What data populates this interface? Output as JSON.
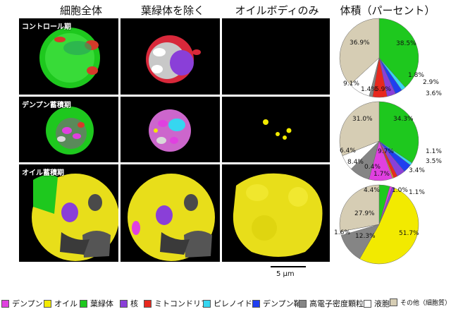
{
  "headers": {
    "col1": "細胞全体",
    "col2": "葉緑体を除く",
    "col3": "オイルボディのみ",
    "col4": "体積（パーセント）"
  },
  "rows": {
    "row1": "コントロール期",
    "row2": "デンプン蓄積期",
    "row3": "オイル蓄積期"
  },
  "scale": "5 µm",
  "legend": [
    {
      "label": "デンプン",
      "color": "#e040e0"
    },
    {
      "label": "オイル",
      "color": "#f2ea00"
    },
    {
      "label": "葉緑体",
      "color": "#1ec81e"
    },
    {
      "label": "核",
      "color": "#8a3fd8"
    },
    {
      "label": "ミトコンドリア",
      "color": "#e8281e"
    },
    {
      "label": "ピレノイド",
      "color": "#36d6f0"
    },
    {
      "label": "デンプン鞘",
      "color": "#1f3ff0"
    },
    {
      "label": "高電子密度顆粒",
      "color": "#858585"
    },
    {
      "label": "液胞",
      "color": "#ffffff"
    },
    {
      "label": "その他（細胞質）",
      "color": "#d6cdb4"
    }
  ],
  "chart_data": [
    {
      "type": "pie",
      "slices": [
        {
          "name": "葉緑体",
          "value": 38.5,
          "label": "38.5%"
        },
        {
          "name": "ピレノイド",
          "value": 1.8,
          "label": "1.8%"
        },
        {
          "name": "デンプン鞘",
          "value": 2.9,
          "label": "2.9%"
        },
        {
          "name": "核",
          "value": 3.6,
          "label": "3.6%"
        },
        {
          "name": "ミトコンドリア",
          "value": 5.9,
          "label": "5.9%"
        },
        {
          "name": "高電子密度顆粒",
          "value": 1.4,
          "label": "1.4%"
        },
        {
          "name": "液胞",
          "value": 9.1,
          "label": "9.1%"
        },
        {
          "name": "その他（細胞質）",
          "value": 36.9,
          "label": "36.9%"
        }
      ]
    },
    {
      "type": "pie",
      "slices": [
        {
          "name": "葉緑体",
          "value": 34.3,
          "label": "34.3%"
        },
        {
          "name": "ピレノイド",
          "value": 1.1,
          "label": "1.1%"
        },
        {
          "name": "デンプン鞘",
          "value": 3.5,
          "label": "3.5%"
        },
        {
          "name": "核",
          "value": 3.4,
          "label": "3.4%"
        },
        {
          "name": "ミトコンドリア",
          "value": 1.7,
          "label": "1.7%"
        },
        {
          "name": "オイル",
          "value": 0.4,
          "label": "0.4%"
        },
        {
          "name": "デンプン",
          "value": 9.7,
          "label": "9.7%"
        },
        {
          "name": "高電子密度顆粒",
          "value": 8.4,
          "label": "8.4%"
        },
        {
          "name": "液胞",
          "value": 6.4,
          "label": "6.4%"
        },
        {
          "name": "その他（細胞質）",
          "value": 31.0,
          "label": "31.0%"
        }
      ]
    },
    {
      "type": "pie",
      "slices": [
        {
          "name": "葉緑体",
          "value": 4.4,
          "label": "4.4%"
        },
        {
          "name": "デンプン",
          "value": 1.0,
          "label": "1.0%"
        },
        {
          "name": "核",
          "value": 1.1,
          "label": "1.1%"
        },
        {
          "name": "オイル",
          "value": 51.7,
          "label": "51.7%"
        },
        {
          "name": "高電子密度顆粒",
          "value": 12.3,
          "label": "12.3%"
        },
        {
          "name": "液胞",
          "value": 1.6,
          "label": "1.6%"
        },
        {
          "name": "その他（細胞質）",
          "value": 27.9,
          "label": "27.9%"
        }
      ]
    }
  ]
}
